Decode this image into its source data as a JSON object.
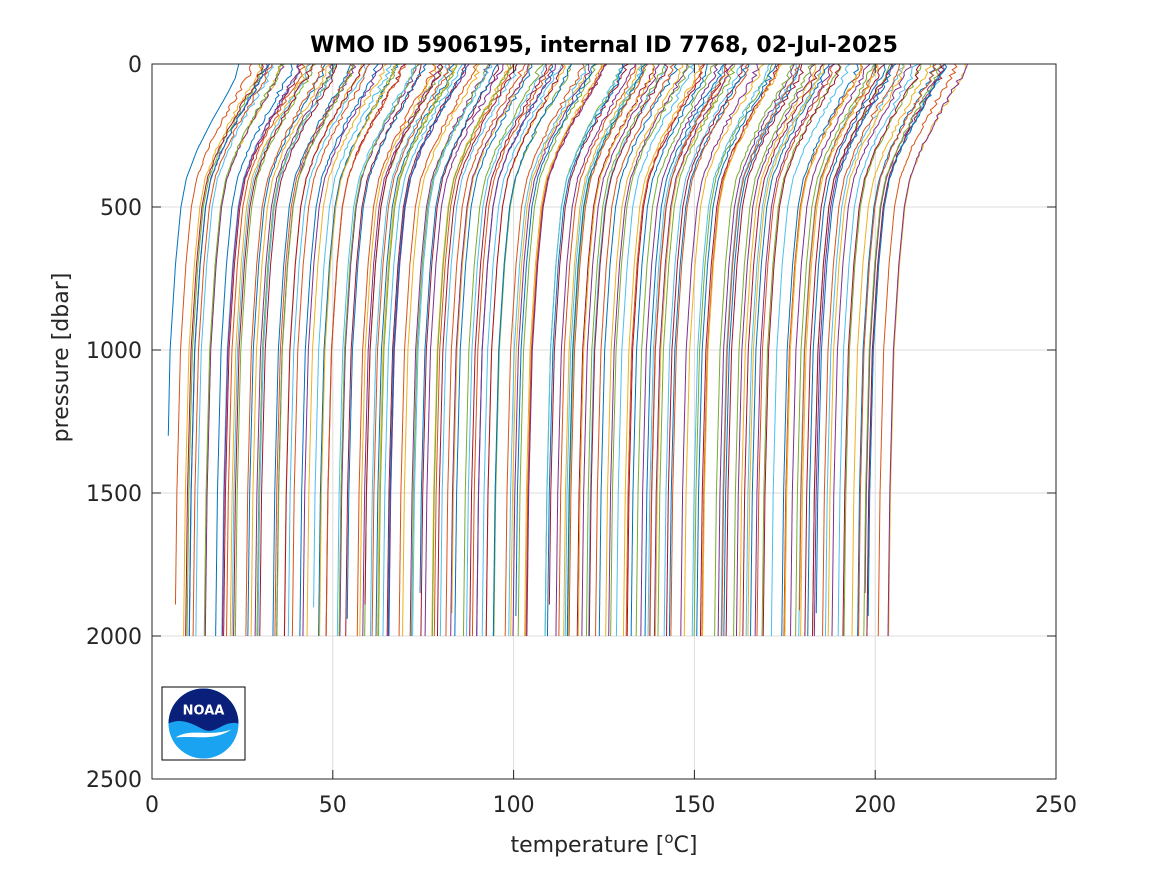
{
  "chart_data": {
    "type": "line",
    "title": "WMO ID 5906195, internal ID 7768, 02-Jul-2025",
    "xlabel": "temperature [°C]",
    "xlabel_main": "temperature [",
    "xlabel_sup": "o",
    "xlabel_tail": "C]",
    "ylabel": "pressure [dbar]",
    "xlim": [
      0,
      250
    ],
    "ylim": [
      0,
      2500
    ],
    "y_reversed": true,
    "grid": true,
    "x_ticks": [
      "0",
      "50",
      "100",
      "150",
      "200",
      "250"
    ],
    "y_ticks": [
      "0",
      "500",
      "1000",
      "1500",
      "2000",
      "2500"
    ],
    "series_description": "Many offset temperature profiles (waterfall style); each successive profile offset ~+1 °C; deep values near the first profile ~5 °C at 2000 dbar, surface values ~25 °C",
    "profile_count": 200,
    "first_profile": {
      "pressure": [
        0,
        50,
        100,
        200,
        300,
        400,
        500,
        700,
        1000,
        1300
      ],
      "temperature": [
        24,
        23,
        21,
        16.5,
        12.5,
        9.5,
        8,
        6.5,
        5,
        4.5
      ]
    },
    "last_profile": {
      "pressure": [
        0,
        50,
        100,
        200,
        300,
        400,
        500,
        700,
        1000,
        1500,
        2000
      ],
      "temperature": [
        225,
        223,
        220,
        215.5,
        212,
        209,
        207.5,
        206,
        204.5,
        203.5,
        203
      ]
    },
    "deep_temperature_range_at_2000": [
      5,
      203
    ],
    "line_colors": [
      "#0072BD",
      "#D95319",
      "#EDB120",
      "#7E2F8E",
      "#77AC30",
      "#4DBEEE",
      "#A2142F"
    ]
  },
  "logo": {
    "text": "NOAA",
    "colors": {
      "dark": "#0a1f7a",
      "light": "#1aa3f0",
      "white": "#ffffff"
    }
  }
}
